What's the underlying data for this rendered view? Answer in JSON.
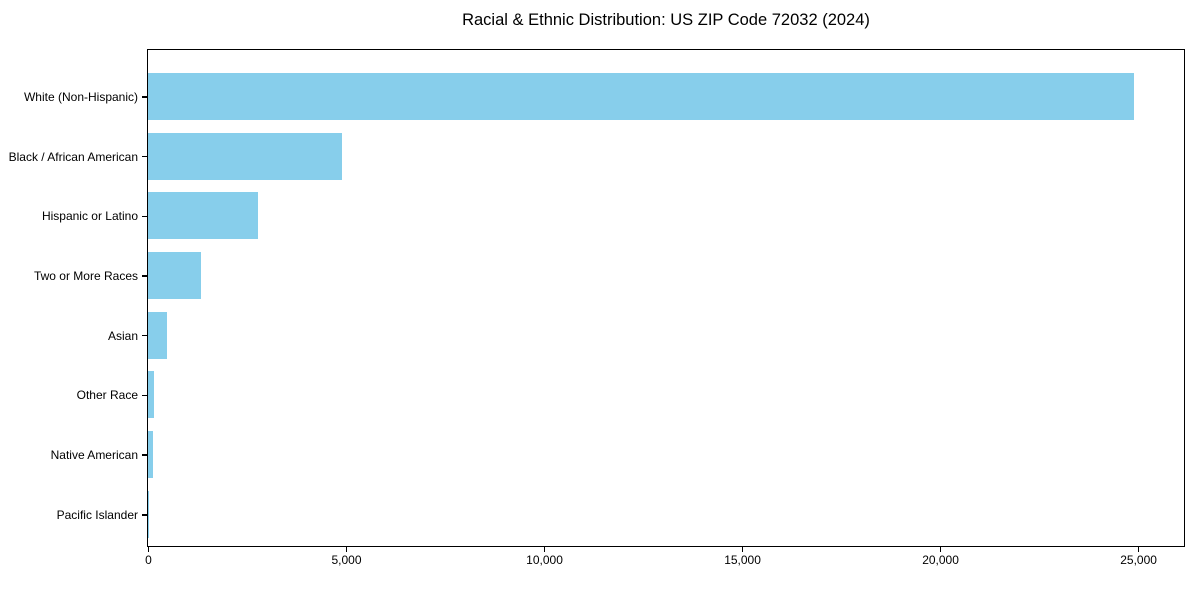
{
  "chart_data": {
    "type": "bar",
    "orientation": "horizontal",
    "title": "Racial & Ethnic Distribution: US ZIP Code 72032 (2024)",
    "categories": [
      "White (Non-Hispanic)",
      "Black / African American",
      "Hispanic or Latino",
      "Two or More Races",
      "Asian",
      "Other Race",
      "Native American",
      "Pacific Islander"
    ],
    "values": [
      24890,
      4895,
      2770,
      1340,
      480,
      150,
      125,
      15
    ],
    "xlabel": "",
    "ylabel": "",
    "xlim": [
      0,
      26134
    ],
    "x_ticks": [
      0,
      5000,
      10000,
      15000,
      20000,
      25000
    ],
    "x_tick_labels": [
      "0",
      "5,000",
      "10,000",
      "15,000",
      "20,000",
      "25,000"
    ],
    "grid": false,
    "legend": null,
    "colors": {
      "bar": "#87CEEB",
      "spine": "#000000",
      "text": "#000000",
      "background": "#ffffff"
    }
  }
}
